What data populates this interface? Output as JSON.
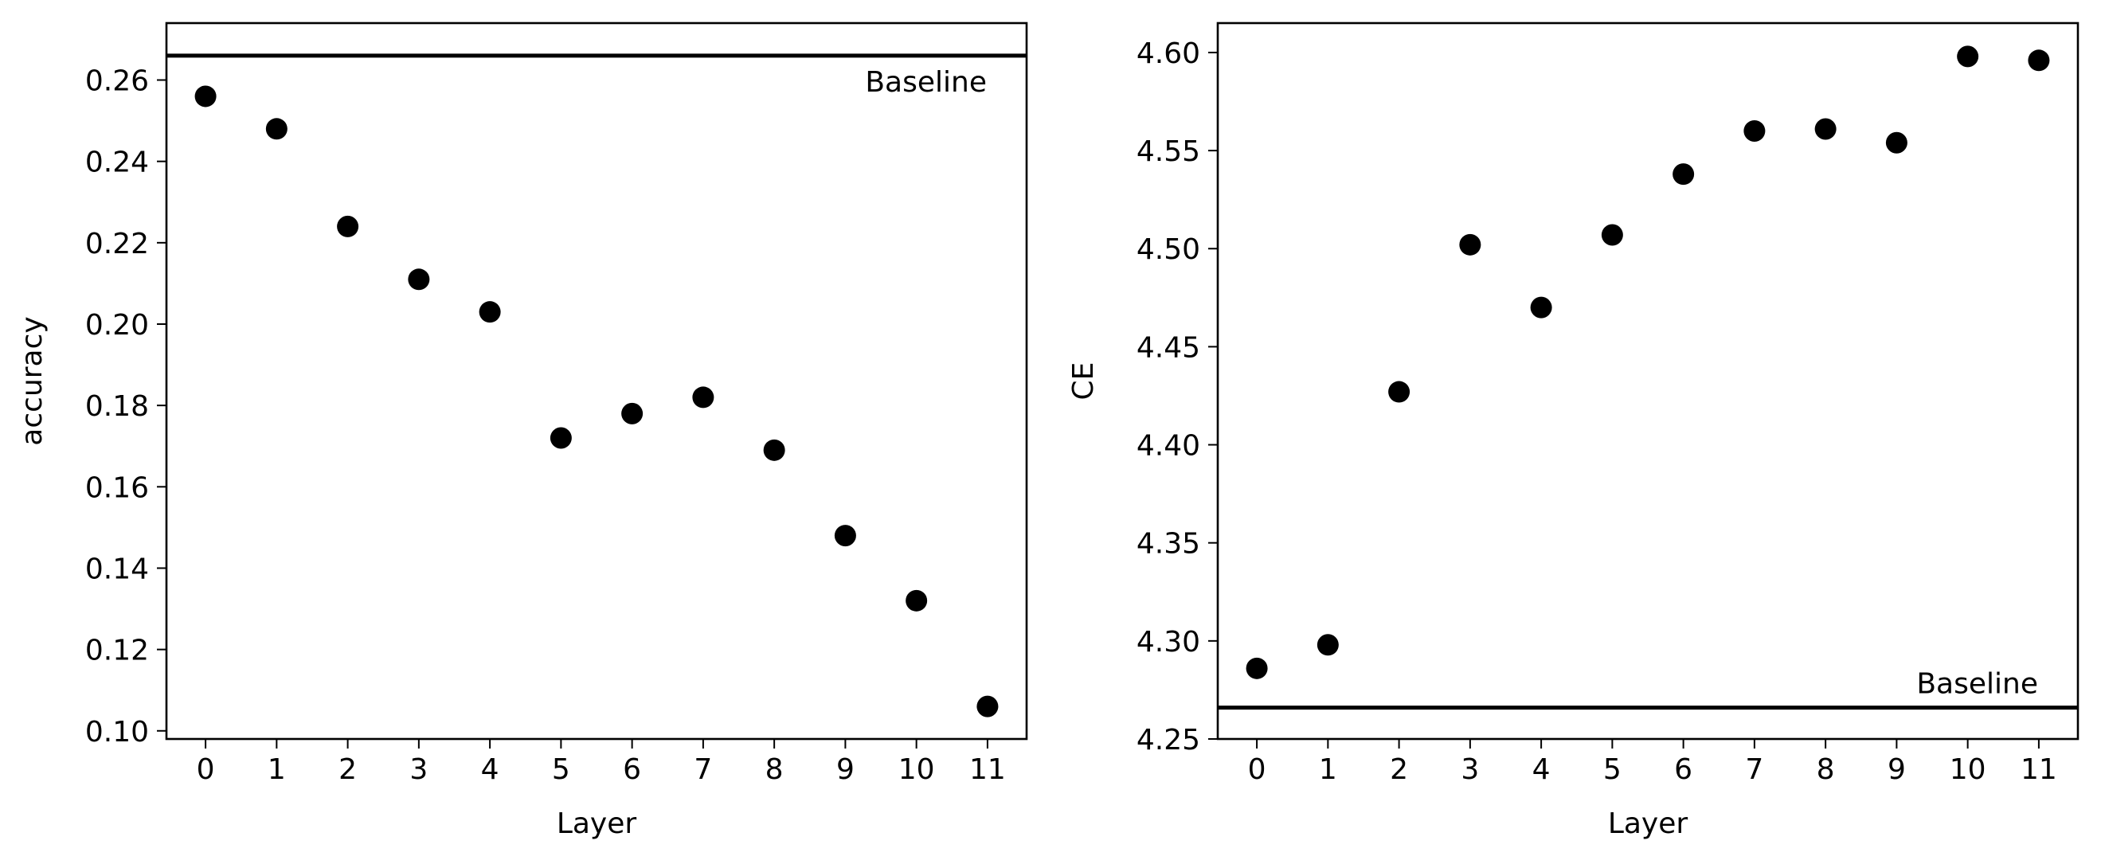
{
  "chart_data": [
    {
      "type": "scatter",
      "xlabel": "Layer",
      "ylabel": "accuracy",
      "ylim": [
        0.098,
        0.274
      ],
      "xlim": [
        -0.55,
        11.55
      ],
      "x_ticks": [
        0,
        1,
        2,
        3,
        4,
        5,
        6,
        7,
        8,
        9,
        10,
        11
      ],
      "y_ticks": [
        0.1,
        0.12,
        0.14,
        0.16,
        0.18,
        0.2,
        0.22,
        0.24,
        0.26
      ],
      "y_tick_labels": [
        "0.10",
        "0.12",
        "0.14",
        "0.16",
        "0.18",
        "0.20",
        "0.22",
        "0.24",
        "0.26"
      ],
      "grid": false,
      "series": [
        {
          "x": [
            0,
            1,
            2,
            3,
            4,
            5,
            6,
            7,
            8,
            9,
            10,
            11
          ],
          "values": [
            0.256,
            0.248,
            0.224,
            0.211,
            0.203,
            0.172,
            0.178,
            0.182,
            0.169,
            0.148,
            0.132,
            0.106
          ],
          "color": "#000000"
        }
      ],
      "reference_line": {
        "label": "Baseline",
        "value": 0.266,
        "label_position": "below-right"
      }
    },
    {
      "type": "scatter",
      "xlabel": "Layer",
      "ylabel": "CE",
      "ylim": [
        4.25,
        4.615
      ],
      "xlim": [
        -0.55,
        11.55
      ],
      "x_ticks": [
        0,
        1,
        2,
        3,
        4,
        5,
        6,
        7,
        8,
        9,
        10,
        11
      ],
      "y_ticks": [
        4.25,
        4.3,
        4.35,
        4.4,
        4.45,
        4.5,
        4.55,
        4.6
      ],
      "y_tick_labels": [
        "4.25",
        "4.30",
        "4.35",
        "4.40",
        "4.45",
        "4.50",
        "4.55",
        "4.60"
      ],
      "grid": false,
      "series": [
        {
          "x": [
            0,
            1,
            2,
            3,
            4,
            5,
            6,
            7,
            8,
            9,
            10,
            11
          ],
          "values": [
            4.286,
            4.298,
            4.427,
            4.502,
            4.47,
            4.507,
            4.538,
            4.56,
            4.561,
            4.554,
            4.598,
            4.596
          ],
          "color": "#000000"
        }
      ],
      "reference_line": {
        "label": "Baseline",
        "value": 4.266,
        "label_position": "above-right"
      }
    }
  ]
}
